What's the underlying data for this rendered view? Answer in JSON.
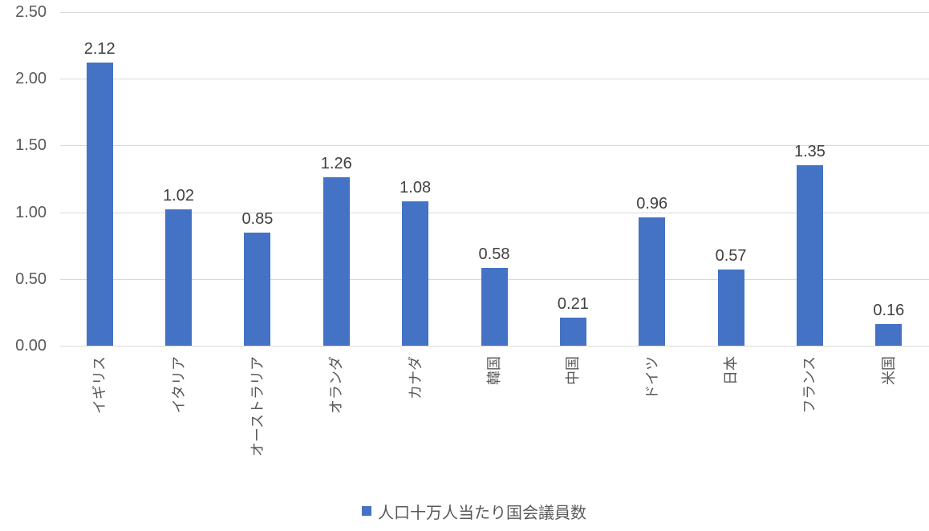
{
  "chart_data": {
    "type": "bar",
    "title": "",
    "categories": [
      "イギリス",
      "イタリア",
      "オーストラリア",
      "オランダ",
      "カナダ",
      "韓国",
      "中国",
      "ドイツ",
      "日本",
      "フランス",
      "米国"
    ],
    "values": [
      2.12,
      1.02,
      0.85,
      1.26,
      1.08,
      0.58,
      0.21,
      0.96,
      0.57,
      1.35,
      0.16
    ],
    "data_labels": [
      "2.12",
      "1.02",
      "0.85",
      "1.26",
      "1.08",
      "0.58",
      "0.21",
      "0.96",
      "0.57",
      "1.35",
      "0.16"
    ],
    "xlabel": "",
    "ylabel": "",
    "ylim": [
      0,
      2.5
    ],
    "y_tick_step": 0.5,
    "y_tick_labels": [
      "0.00",
      "0.50",
      "1.00",
      "1.50",
      "2.00",
      "2.50"
    ],
    "grid": true,
    "category_label_rotation_deg": -90,
    "legend": {
      "label": "人口十万人当たり国会議員数",
      "position": "bottom-center",
      "marker": "square-icon"
    },
    "colors": {
      "bar": "#4472c4",
      "gridline": "#d9d9d9",
      "axis_text": "#595959",
      "data_label_text": "#404040",
      "background": "#ffffff"
    }
  }
}
